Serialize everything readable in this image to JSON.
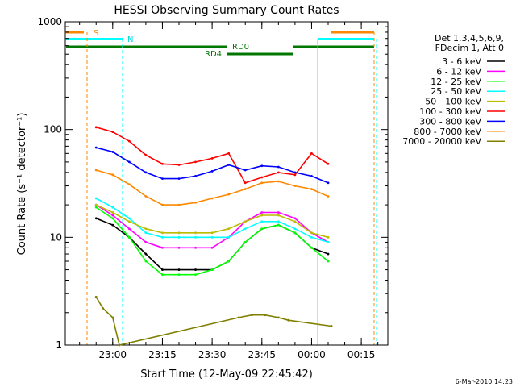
{
  "chart_data": {
    "type": "line",
    "title": "HESSI Observing Summary Count Rates",
    "xlabel": "Start Time (12-May-09 22:45:42)",
    "ylabel": "Count Rate (s⁻¹ detector⁻¹)",
    "y_scale": "log",
    "ylim": [
      1,
      1000
    ],
    "xlim": [
      "22:45:42",
      "00:23:00"
    ],
    "x_ticks": [
      "23:00",
      "23:15",
      "23:30",
      "23:45",
      "00:00",
      "00:15"
    ],
    "y_ticks": [
      "1",
      "10",
      "100",
      "1000"
    ],
    "legend_position": "right",
    "legend_header": [
      "Det 1,3,4,5,6,9,",
      "FDecim 1, Att 0"
    ],
    "timestamp": "6-Mar-2010 14:23",
    "annotations": {
      "S": "S",
      "N": "N",
      "RD0": "RD0",
      "RD4": "RD4"
    },
    "series": [
      {
        "name": "3 - 6 keV",
        "color": "#000000",
        "x": [
          "22:55",
          "23:00",
          "23:05",
          "23:10",
          "23:15",
          "23:20",
          "23:25",
          "23:30",
          "23:35",
          "23:40",
          "23:45",
          "23:50",
          "23:55",
          "00:00",
          "00:05"
        ],
        "values": [
          15,
          13,
          10,
          7,
          5,
          5,
          5,
          5,
          6,
          9,
          12,
          13,
          11,
          8,
          7
        ]
      },
      {
        "name": "6 - 12 keV",
        "color": "#ff00ff",
        "x": [
          "22:55",
          "23:00",
          "23:05",
          "23:10",
          "23:15",
          "23:20",
          "23:25",
          "23:30",
          "23:35",
          "23:40",
          "23:45",
          "23:50",
          "23:55",
          "00:00",
          "00:05"
        ],
        "values": [
          20,
          16,
          12,
          9,
          8,
          8,
          8,
          8,
          10,
          14,
          17,
          17,
          15,
          11,
          9
        ]
      },
      {
        "name": "12 - 25 keV",
        "color": "#00ff00",
        "x": [
          "22:55",
          "23:00",
          "23:05",
          "23:10",
          "23:15",
          "23:20",
          "23:25",
          "23:30",
          "23:35",
          "23:40",
          "23:45",
          "23:50",
          "23:55",
          "00:00",
          "00:05"
        ],
        "values": [
          19,
          15,
          10,
          6,
          4.5,
          4.5,
          4.5,
          5,
          6,
          9,
          12,
          13,
          11,
          8,
          6
        ]
      },
      {
        "name": "25 - 50 keV",
        "color": "#00ffff",
        "x": [
          "22:55",
          "23:00",
          "23:05",
          "23:10",
          "23:15",
          "23:20",
          "23:25",
          "23:30",
          "23:35",
          "23:40",
          "23:45",
          "23:50",
          "23:55",
          "00:00",
          "00:05"
        ],
        "values": [
          23,
          19,
          15,
          11,
          10,
          10,
          10,
          10,
          10,
          12,
          14,
          14,
          12,
          10,
          9
        ]
      },
      {
        "name": "50 - 100 keV",
        "color": "#bbbb00",
        "x": [
          "22:55",
          "23:00",
          "23:05",
          "23:10",
          "23:15",
          "23:20",
          "23:25",
          "23:30",
          "23:35",
          "23:40",
          "23:45",
          "23:50",
          "23:55",
          "00:00",
          "00:05"
        ],
        "values": [
          20,
          17,
          14,
          12,
          11,
          11,
          11,
          11,
          12,
          14,
          16,
          16,
          14,
          11,
          10
        ]
      },
      {
        "name": "100 - 300 keV",
        "color": "#ff0000",
        "x": [
          "22:55",
          "23:00",
          "23:05",
          "23:10",
          "23:15",
          "23:20",
          "23:25",
          "23:30",
          "23:35",
          "23:40",
          "23:45",
          "23:50",
          "23:55",
          "00:00",
          "00:05"
        ],
        "values": [
          105,
          95,
          78,
          58,
          48,
          47,
          50,
          54,
          60,
          32,
          36,
          40,
          38,
          60,
          48
        ]
      },
      {
        "name": "300 - 800 keV",
        "color": "#0000ff",
        "x": [
          "22:55",
          "23:00",
          "23:05",
          "23:10",
          "23:15",
          "23:20",
          "23:25",
          "23:30",
          "23:35",
          "23:40",
          "23:45",
          "23:50",
          "23:55",
          "00:00",
          "00:05"
        ],
        "values": [
          68,
          62,
          50,
          40,
          35,
          35,
          37,
          41,
          47,
          42,
          46,
          45,
          40,
          37,
          32
        ]
      },
      {
        "name": "800 - 7000 keV",
        "color": "#ff8800",
        "x": [
          "22:55",
          "23:00",
          "23:05",
          "23:10",
          "23:15",
          "23:20",
          "23:25",
          "23:30",
          "23:35",
          "23:40",
          "23:45",
          "23:50",
          "23:55",
          "00:00",
          "00:05"
        ],
        "values": [
          42,
          38,
          31,
          24,
          20,
          20,
          21,
          23,
          25,
          28,
          32,
          33,
          30,
          28,
          24
        ]
      },
      {
        "name": "7000 - 20000 keV",
        "color": "#808000",
        "x": [
          "22:55",
          "22:57",
          "23:00",
          "23:02",
          "23:38",
          "23:42",
          "23:46",
          "23:50",
          "23:53",
          "00:06"
        ],
        "values": [
          2.8,
          2.2,
          1.8,
          1.0,
          1.8,
          1.9,
          1.9,
          1.8,
          1.7,
          1.5
        ]
      }
    ]
  }
}
